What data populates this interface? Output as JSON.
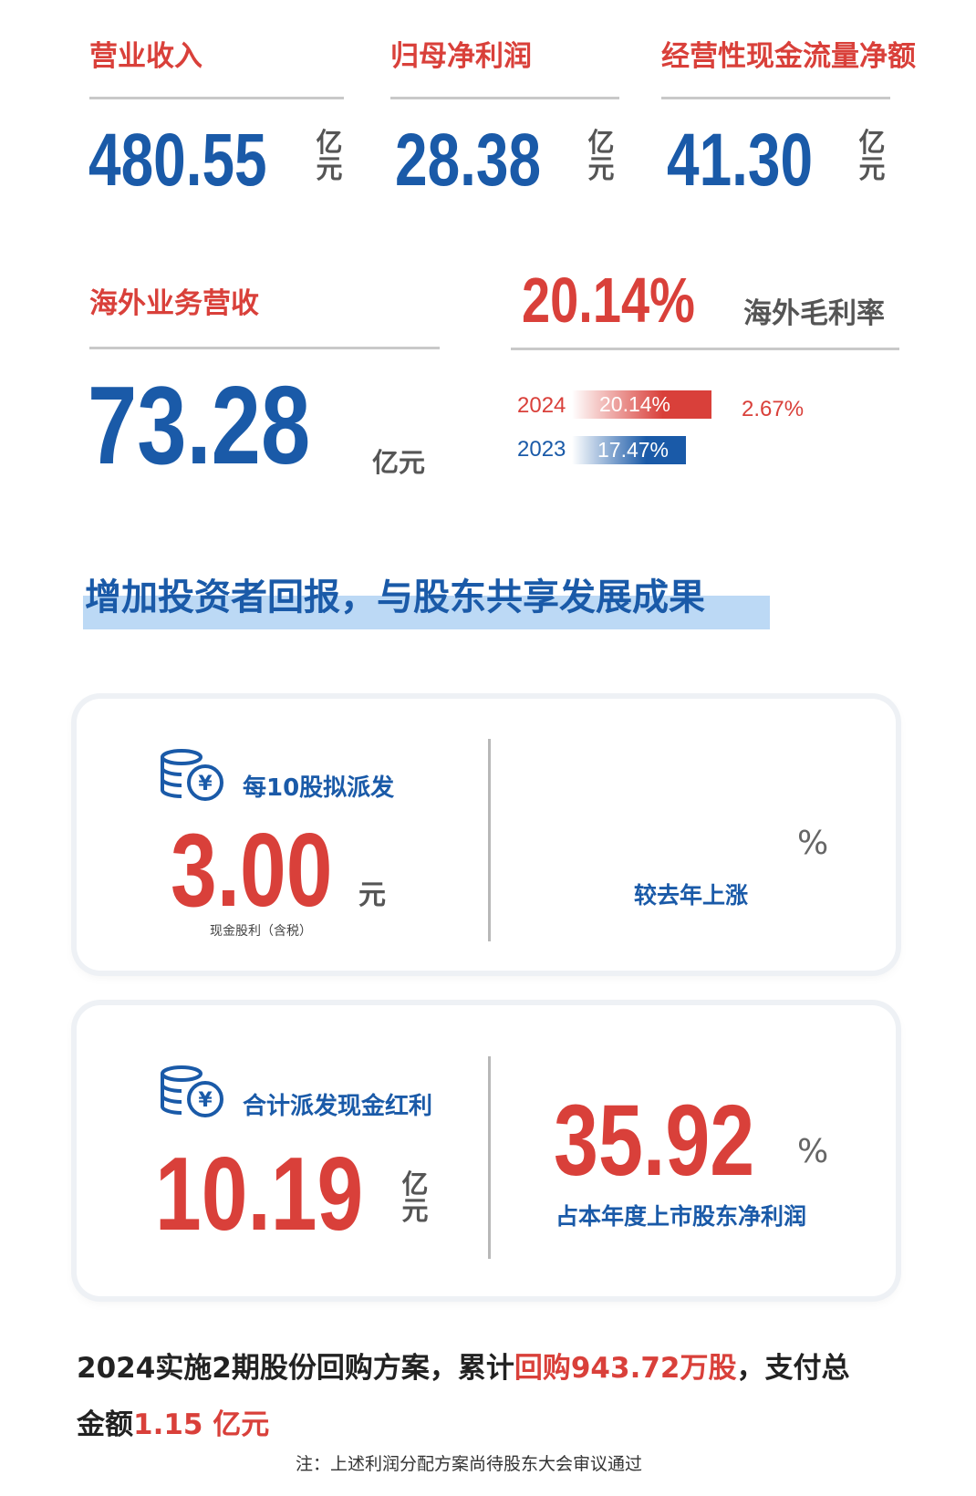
{
  "kpis": [
    {
      "title": "营业收入",
      "value": "480.55",
      "unit": "亿元"
    },
    {
      "title": "归母净利润",
      "value": "28.38",
      "unit": "亿元"
    },
    {
      "title": "经营性现金流量净额",
      "value": "41.30",
      "unit": "亿元"
    }
  ],
  "overseas": {
    "title": "海外业务营收",
    "value": "73.28",
    "unit": "亿元",
    "margin_value": "20.14%",
    "margin_label": "海外毛利率",
    "bars": [
      {
        "year": "2024",
        "value": "20.14%",
        "color": "#d9403a"
      },
      {
        "year": "2023",
        "value": "17.47%",
        "color": "#1a5aa8"
      }
    ],
    "delta": "2.67%"
  },
  "section_heading": "增加投资者回报，与股东共享发展成果",
  "card1": {
    "label": "每10股拟派发",
    "value": "3.00",
    "unit": "元",
    "note": "现金股利（含税）",
    "pct_symbol": "%",
    "right_label": "较去年上涨"
  },
  "card2": {
    "label": "合计派发现金红利",
    "value": "10.19",
    "unit": "亿元",
    "right_value": "35.92",
    "pct_symbol": "%",
    "right_label": "占本年度上市股东净利润"
  },
  "buyback": {
    "p1": "2024实施2期股份回购方案，累计",
    "p2": "回购943.72万股",
    "p3": "，支付总",
    "p4": "金额",
    "p5": "1.15 亿元"
  },
  "footnote": "注：上述利润分配方案尚待股东大会审议通过",
  "colors": {
    "red": "#d9403a",
    "blue": "#1a5aa8"
  }
}
